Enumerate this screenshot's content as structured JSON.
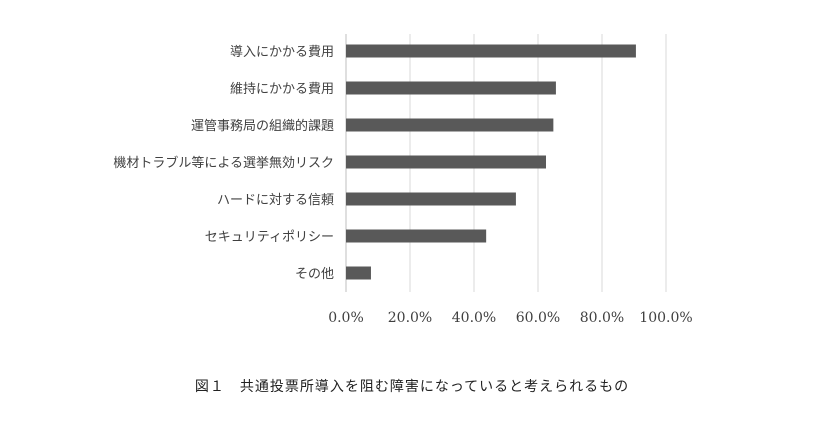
{
  "chart_data": {
    "type": "bar",
    "orientation": "horizontal",
    "categories": [
      "導入にかかる費用",
      "維持にかかる費用",
      "運管事務局の組織的課題",
      "機材トラブル等による選挙無効リスク",
      "ハードに対する信頼",
      "セキュリティポリシー",
      "その他"
    ],
    "values": [
      90.6,
      65.6,
      64.8,
      62.5,
      53.1,
      43.8,
      7.8
    ],
    "xlim": [
      0,
      100
    ],
    "xticks": [
      "0.0%",
      "20.0%",
      "40.0%",
      "60.0%",
      "80.0%",
      "100.0%"
    ],
    "grid": true,
    "bar_color": "#595959",
    "grid_color": "#d9d9d9"
  },
  "caption": "図１　共通投票所導入を阻む障害になっていると考えられるもの"
}
